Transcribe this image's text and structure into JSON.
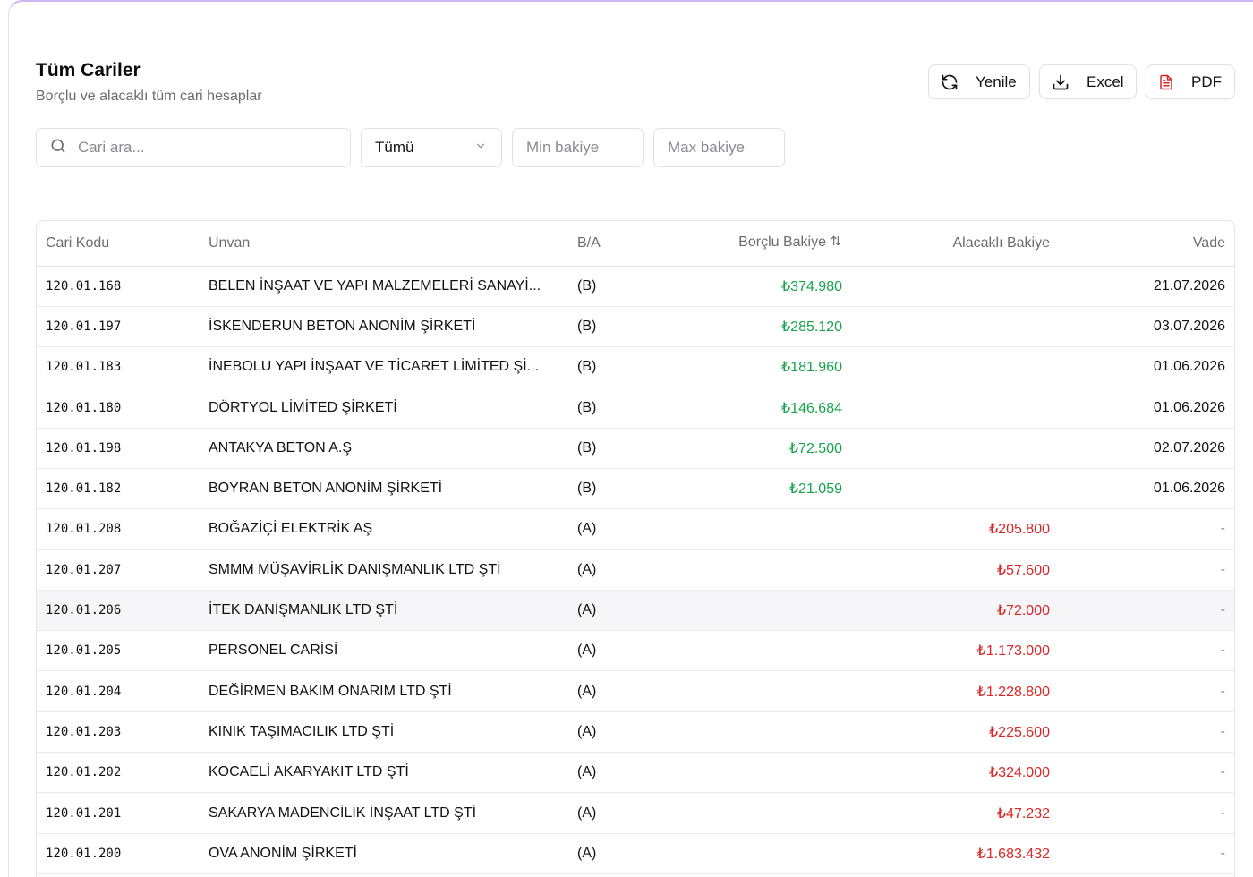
{
  "header": {
    "title": "Tüm Cariler",
    "subtitle": "Borçlu ve alacaklı tüm cari hesaplar"
  },
  "actions": {
    "refresh_label": "Yenile",
    "excel_label": "Excel",
    "pdf_label": "PDF"
  },
  "filters": {
    "search_placeholder": "Cari ara...",
    "type_selected": "Tümü",
    "min_placeholder": "Min bakiye",
    "max_placeholder": "Max bakiye"
  },
  "table": {
    "columns": {
      "code": "Cari Kodu",
      "unvan": "Unvan",
      "ba": "B/A",
      "borc": "Borçlu Bakiye",
      "alac": "Alacaklı Bakiye",
      "vade": "Vade"
    },
    "rows": [
      {
        "code": "120.01.168",
        "unvan": "BELEN İNŞAAT VE YAPI MALZEMELERİ SANAYİ...",
        "ba": "(B)",
        "borc": "₺374.980",
        "alac": "",
        "vade": "21.07.2026"
      },
      {
        "code": "120.01.197",
        "unvan": "İSKENDERUN BETON ANONİM ŞİRKETİ",
        "ba": "(B)",
        "borc": "₺285.120",
        "alac": "",
        "vade": "03.07.2026"
      },
      {
        "code": "120.01.183",
        "unvan": "İNEBOLU YAPI İNŞAAT VE TİCARET LİMİTED Şİ...",
        "ba": "(B)",
        "borc": "₺181.960",
        "alac": "",
        "vade": "01.06.2026"
      },
      {
        "code": "120.01.180",
        "unvan": "DÖRTYOL LİMİTED ŞİRKETİ",
        "ba": "(B)",
        "borc": "₺146.684",
        "alac": "",
        "vade": "01.06.2026"
      },
      {
        "code": "120.01.198",
        "unvan": "ANTAKYA BETON A.Ş",
        "ba": "(B)",
        "borc": "₺72.500",
        "alac": "",
        "vade": "02.07.2026"
      },
      {
        "code": "120.01.182",
        "unvan": "BOYRAN BETON ANONİM ŞİRKETİ",
        "ba": "(B)",
        "borc": "₺21.059",
        "alac": "",
        "vade": "01.06.2026"
      },
      {
        "code": "120.01.208",
        "unvan": "BOĞAZİÇİ ELEKTRİK AŞ",
        "ba": "(A)",
        "borc": "",
        "alac": "₺205.800",
        "vade": "-"
      },
      {
        "code": "120.01.207",
        "unvan": "SMMM MÜŞAVİRLİK DANIŞMANLIK LTD ŞTİ",
        "ba": "(A)",
        "borc": "",
        "alac": "₺57.600",
        "vade": "-"
      },
      {
        "code": "120.01.206",
        "unvan": "İTEK DANIŞMANLIK LTD ŞTİ",
        "ba": "(A)",
        "borc": "",
        "alac": "₺72.000",
        "vade": "-"
      },
      {
        "code": "120.01.205",
        "unvan": "PERSONEL CARİSİ",
        "ba": "(A)",
        "borc": "",
        "alac": "₺1.173.000",
        "vade": "-"
      },
      {
        "code": "120.01.204",
        "unvan": "DEĞİRMEN BAKIM ONARIM LTD ŞTİ",
        "ba": "(A)",
        "borc": "",
        "alac": "₺1.228.800",
        "vade": "-"
      },
      {
        "code": "120.01.203",
        "unvan": "KINIK TAŞIMACILIK LTD ŞTİ",
        "ba": "(A)",
        "borc": "",
        "alac": "₺225.600",
        "vade": "-"
      },
      {
        "code": "120.01.202",
        "unvan": "KOCAELİ AKARYAKIT LTD ŞTİ",
        "ba": "(A)",
        "borc": "",
        "alac": "₺324.000",
        "vade": "-"
      },
      {
        "code": "120.01.201",
        "unvan": "SAKARYA MADENCİLİK İNŞAAT LTD ŞTİ",
        "ba": "(A)",
        "borc": "",
        "alac": "₺47.232",
        "vade": "-"
      },
      {
        "code": "120.01.200",
        "unvan": "OVA ANONİM ŞİRKETİ",
        "ba": "(A)",
        "borc": "",
        "alac": "₺1.683.432",
        "vade": "-"
      }
    ]
  },
  "colors": {
    "debt": "#16a34a",
    "credit": "#dc2626",
    "pdf_icon": "#dc2626",
    "card_top_border": "#cdb5f0"
  },
  "icons": {
    "refresh": "refresh-icon",
    "excel": "download-icon",
    "pdf": "file-text-icon",
    "search": "search-icon",
    "select": "chevron-down-icon",
    "sort": "sort-icon"
  }
}
